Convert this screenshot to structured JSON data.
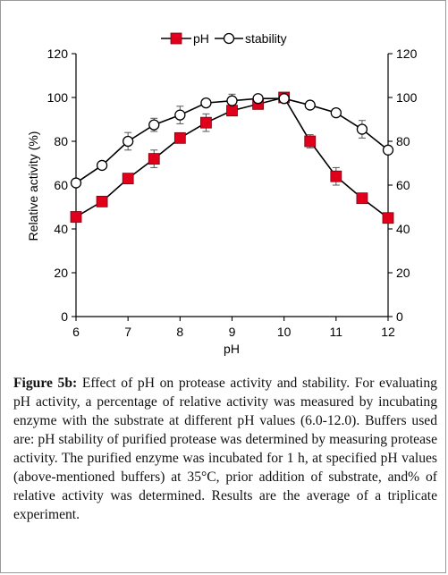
{
  "chart_data": {
    "type": "line",
    "xlabel": "pH",
    "ylabel_left": "Relative activity (%)",
    "ylabel_right": "",
    "xlim": [
      6,
      12
    ],
    "ylim": [
      0,
      120
    ],
    "x_ticks": [
      6,
      7,
      8,
      9,
      10,
      11,
      12
    ],
    "y_ticks": [
      0,
      20,
      40,
      60,
      80,
      100,
      120
    ],
    "legend_position": "top-center",
    "grid": false,
    "series": [
      {
        "name": "pH",
        "marker": "filled-square",
        "color": "#e0001b",
        "line_color": "#000000",
        "x": [
          6,
          6.5,
          7,
          7.5,
          8,
          8.5,
          9,
          9.5,
          10,
          10.5,
          11,
          11.5,
          12
        ],
        "y": [
          45.5,
          52.5,
          63,
          72,
          81.5,
          88.5,
          94,
          97,
          100,
          80,
          64,
          54,
          45
        ],
        "error": [
          0,
          0,
          0,
          4,
          0,
          4,
          0,
          0,
          0,
          3,
          4,
          0,
          0
        ]
      },
      {
        "name": "stability",
        "marker": "open-circle",
        "color": "#000000",
        "line_color": "#000000",
        "x": [
          6,
          6.5,
          7,
          7.5,
          8,
          8.5,
          9,
          9.5,
          10,
          10.5,
          11,
          11.5,
          12
        ],
        "y": [
          61,
          69,
          80,
          87.5,
          92,
          97.5,
          98.5,
          99.5,
          99.5,
          96.5,
          93,
          85.5,
          76
        ],
        "error": [
          0,
          0,
          4,
          3,
          4,
          0,
          3,
          0,
          0,
          0,
          0,
          4,
          0
        ]
      }
    ]
  },
  "caption": {
    "label": "Figure 5b:",
    "text": "Effect of pH on protease activity and stability. For evaluating pH activity, a percentage of relative activity was measured by incubating enzyme with the substrate at different pH values (6.0-12.0). Buffers used are: pH stability of purified protease was determined by measuring protease activity. The purified enzyme was incubated for 1 h, at specified pH values (above-mentioned buffers) at 35°C, prior addition of substrate, and% of relative activity was determined. Results are the average of a triplicate experiment."
  }
}
